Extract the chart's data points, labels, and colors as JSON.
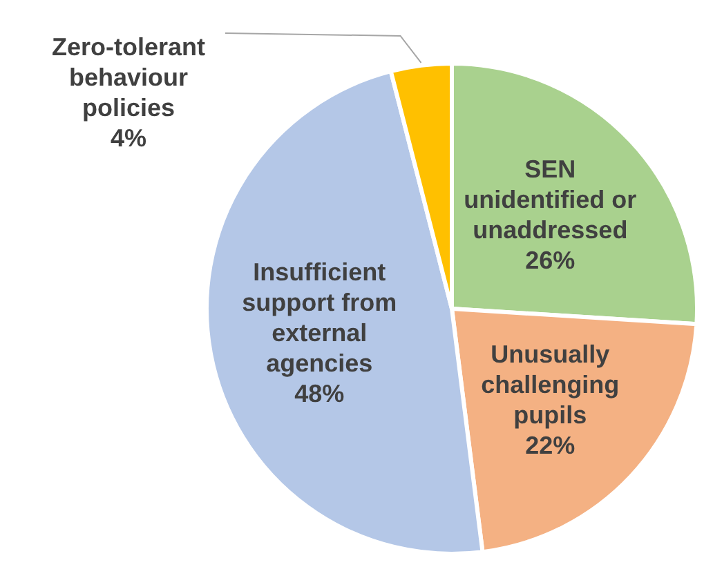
{
  "chart_data": {
    "type": "pie",
    "categories": [
      "SEN unidentified or unaddressed",
      "Unusually challenging pupils",
      "Insufficient support from external agencies",
      "Zero-tolerant behaviour policies"
    ],
    "values": [
      26,
      22,
      48,
      4
    ],
    "colors": [
      "#a9d18e",
      "#f4b183",
      "#b4c7e7",
      "#ffc000"
    ],
    "value_labels": [
      "26%",
      "22%",
      "48%",
      "4%"
    ],
    "legend": false
  }
}
